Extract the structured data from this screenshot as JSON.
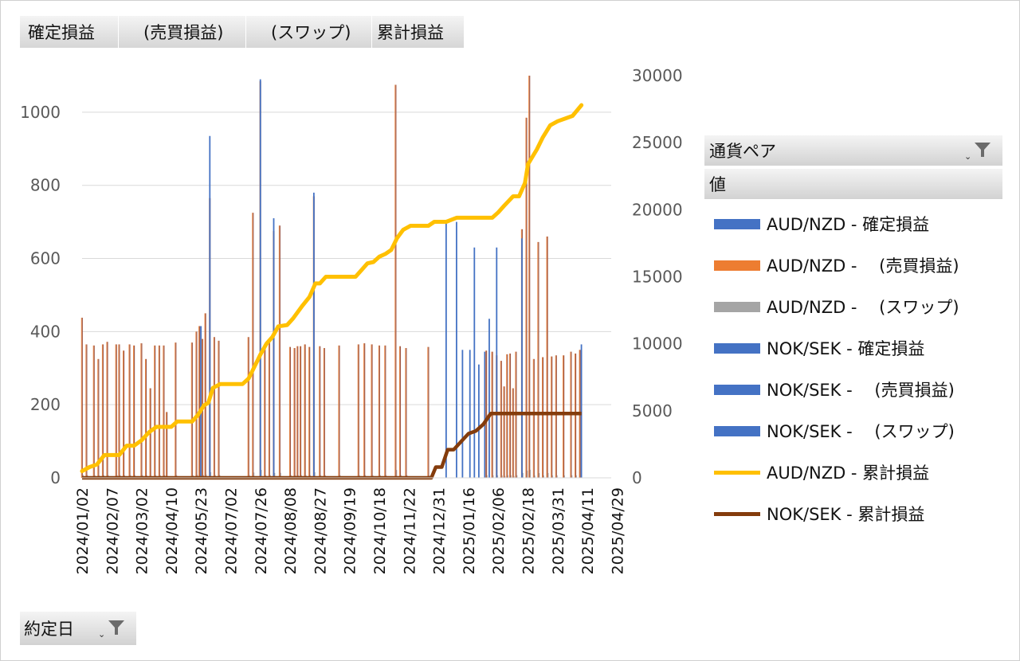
{
  "field_buttons": [
    "確定損益",
    "　(売買損益)",
    "　(スワップ)",
    "累計損益"
  ],
  "legend_filter": {
    "title": "通貨ペア",
    "values_label": "値"
  },
  "axis_filter": {
    "label": "約定日"
  },
  "colors": {
    "aud_settled": "#4472c4",
    "aud_trade": "#ed7d31",
    "aud_swap": "#a5a5a5",
    "nok": "#4472c4",
    "aud_cum": "#ffc000",
    "nok_cum": "#843c0c",
    "grid": "#d9d9d9"
  },
  "chart_data": {
    "type": "bar",
    "title": "",
    "y_left": {
      "min": 0,
      "max": 1100,
      "ticks": [
        0,
        200,
        400,
        600,
        800,
        1000
      ]
    },
    "y_right": {
      "min": 0,
      "max": 30000,
      "ticks": [
        0,
        5000,
        10000,
        15000,
        20000,
        25000,
        30000
      ]
    },
    "x_tick_labels": [
      "2024/01/02",
      "2024/02/07",
      "2024/03/02",
      "2024/04/10",
      "2024/05/23",
      "2024/07/02",
      "2024/07/26",
      "2024/08/08",
      "2024/08/27",
      "2024/09/19",
      "2024/10/18",
      "2024/11/22",
      "2024/12/31",
      "2025/01/16",
      "2025/02/06",
      "2025/02/18",
      "2025/03/31",
      "2025/04/11",
      "2025/04/29"
    ],
    "legend_position": "right",
    "gridlines": true,
    "series": [
      {
        "name": "AUD/NZD - 確定損益",
        "kind": "bar",
        "axis": "left",
        "color_key": "aud_settled"
      },
      {
        "name": "AUD/NZD - 　(売買損益)",
        "kind": "bar",
        "axis": "left",
        "color_key": "aud_trade"
      },
      {
        "name": "AUD/NZD - 　(スワップ)",
        "kind": "bar",
        "axis": "left",
        "color_key": "aud_swap"
      },
      {
        "name": "NOK/SEK - 確定損益",
        "kind": "bar",
        "axis": "left",
        "color_key": "nok"
      },
      {
        "name": "NOK/SEK - 　(売買損益)",
        "kind": "bar",
        "axis": "left",
        "color_key": "nok"
      },
      {
        "name": "NOK/SEK - 　(スワップ)",
        "kind": "bar",
        "axis": "left",
        "color_key": "nok"
      },
      {
        "name": "AUD/NZD - 累計損益",
        "kind": "line",
        "axis": "right",
        "color_key": "aud_cum"
      },
      {
        "name": "NOK/SEK - 累計損益",
        "kind": "line",
        "axis": "right",
        "color_key": "nok_cum"
      }
    ],
    "aud_bars": [
      {
        "x": 0.0,
        "v": 438
      },
      {
        "x": 0.3,
        "v": 365
      },
      {
        "x": 0.8,
        "v": 362
      },
      {
        "x": 1.1,
        "v": 325
      },
      {
        "x": 1.4,
        "v": 365
      },
      {
        "x": 1.7,
        "v": 372
      },
      {
        "x": 2.3,
        "v": 365
      },
      {
        "x": 2.5,
        "v": 365
      },
      {
        "x": 2.8,
        "v": 348
      },
      {
        "x": 3.2,
        "v": 365
      },
      {
        "x": 3.5,
        "v": 362
      },
      {
        "x": 4.0,
        "v": 368
      },
      {
        "x": 4.3,
        "v": 325
      },
      {
        "x": 4.6,
        "v": 245
      },
      {
        "x": 4.9,
        "v": 362
      },
      {
        "x": 5.2,
        "v": 362
      },
      {
        "x": 5.5,
        "v": 362
      },
      {
        "x": 5.7,
        "v": 180
      },
      {
        "x": 6.3,
        "v": 370
      },
      {
        "x": 7.4,
        "v": 370
      },
      {
        "x": 7.7,
        "v": 400
      },
      {
        "x": 7.9,
        "v": 415
      },
      {
        "x": 8.1,
        "v": 380
      },
      {
        "x": 8.3,
        "v": 450
      },
      {
        "x": 8.6,
        "v": 765
      },
      {
        "x": 8.9,
        "v": 385
      },
      {
        "x": 9.2,
        "v": 375
      },
      {
        "x": 11.2,
        "v": 385
      },
      {
        "x": 11.5,
        "v": 725
      },
      {
        "x": 12.0,
        "v": 1085
      },
      {
        "x": 12.3,
        "v": 365
      },
      {
        "x": 12.6,
        "v": 370
      },
      {
        "x": 12.9,
        "v": 675
      },
      {
        "x": 13.3,
        "v": 690
      },
      {
        "x": 14.0,
        "v": 358
      },
      {
        "x": 14.3,
        "v": 355
      },
      {
        "x": 14.5,
        "v": 360
      },
      {
        "x": 14.7,
        "v": 360
      },
      {
        "x": 15.0,
        "v": 365
      },
      {
        "x": 15.3,
        "v": 358
      },
      {
        "x": 15.6,
        "v": 770
      },
      {
        "x": 16.0,
        "v": 360
      },
      {
        "x": 16.3,
        "v": 355
      },
      {
        "x": 17.3,
        "v": 362
      },
      {
        "x": 18.6,
        "v": 365
      },
      {
        "x": 19.0,
        "v": 368
      },
      {
        "x": 19.5,
        "v": 365
      },
      {
        "x": 20.0,
        "v": 362
      },
      {
        "x": 20.4,
        "v": 362
      },
      {
        "x": 21.1,
        "v": 1075
      },
      {
        "x": 21.4,
        "v": 360
      },
      {
        "x": 21.8,
        "v": 355
      },
      {
        "x": 23.3,
        "v": 358
      },
      {
        "x": 27.2,
        "v": 348
      },
      {
        "x": 27.6,
        "v": 345
      },
      {
        "x": 27.9,
        "v": 335
      },
      {
        "x": 28.2,
        "v": 320
      },
      {
        "x": 28.4,
        "v": 250
      },
      {
        "x": 28.6,
        "v": 338
      },
      {
        "x": 28.8,
        "v": 340
      },
      {
        "x": 29.0,
        "v": 245
      },
      {
        "x": 29.2,
        "v": 345
      },
      {
        "x": 29.6,
        "v": 680
      },
      {
        "x": 29.9,
        "v": 985
      },
      {
        "x": 30.1,
        "v": 1100
      },
      {
        "x": 30.4,
        "v": 325
      },
      {
        "x": 30.7,
        "v": 645
      },
      {
        "x": 31.0,
        "v": 330
      },
      {
        "x": 31.3,
        "v": 660
      },
      {
        "x": 31.6,
        "v": 332
      },
      {
        "x": 31.9,
        "v": 335
      },
      {
        "x": 32.4,
        "v": 335
      },
      {
        "x": 32.9,
        "v": 345
      },
      {
        "x": 33.2,
        "v": 340
      },
      {
        "x": 33.5,
        "v": 350
      }
    ],
    "nok_bars": [
      {
        "x": 8.0,
        "v": 415
      },
      {
        "x": 8.6,
        "v": 935
      },
      {
        "x": 12.0,
        "v": 1090
      },
      {
        "x": 12.9,
        "v": 710
      },
      {
        "x": 15.6,
        "v": 780
      },
      {
        "x": 24.5,
        "v": 700
      },
      {
        "x": 25.2,
        "v": 700
      },
      {
        "x": 25.6,
        "v": 350
      },
      {
        "x": 26.1,
        "v": 350
      },
      {
        "x": 26.4,
        "v": 630
      },
      {
        "x": 26.7,
        "v": 310
      },
      {
        "x": 27.1,
        "v": 345
      },
      {
        "x": 27.4,
        "v": 435
      },
      {
        "x": 27.9,
        "v": 630
      },
      {
        "x": 29.6,
        "v": 655
      },
      {
        "x": 33.6,
        "v": 365
      }
    ],
    "aud_cum": [
      [
        0.0,
        500
      ],
      [
        0.5,
        800
      ],
      [
        1.0,
        1000
      ],
      [
        1.5,
        1700
      ],
      [
        2.5,
        1700
      ],
      [
        3.0,
        2400
      ],
      [
        3.5,
        2400
      ],
      [
        4.0,
        2800
      ],
      [
        4.5,
        3400
      ],
      [
        5.0,
        3800
      ],
      [
        5.5,
        3800
      ],
      [
        6.0,
        3800
      ],
      [
        6.4,
        4200
      ],
      [
        7.4,
        4200
      ],
      [
        7.8,
        4700
      ],
      [
        8.2,
        5400
      ],
      [
        8.5,
        5600
      ],
      [
        8.8,
        6700
      ],
      [
        9.3,
        7000
      ],
      [
        10.8,
        7000
      ],
      [
        11.2,
        7400
      ],
      [
        11.6,
        8300
      ],
      [
        12.0,
        9200
      ],
      [
        12.4,
        10000
      ],
      [
        12.8,
        10500
      ],
      [
        13.2,
        11300
      ],
      [
        13.8,
        11400
      ],
      [
        14.2,
        11900
      ],
      [
        14.8,
        12800
      ],
      [
        15.3,
        13500
      ],
      [
        15.7,
        14500
      ],
      [
        16.0,
        14500
      ],
      [
        16.4,
        15000
      ],
      [
        17.2,
        15000
      ],
      [
        17.5,
        15000
      ],
      [
        18.4,
        15000
      ],
      [
        18.8,
        15500
      ],
      [
        19.2,
        16000
      ],
      [
        19.6,
        16100
      ],
      [
        20.0,
        16500
      ],
      [
        20.4,
        16700
      ],
      [
        20.8,
        17000
      ],
      [
        21.2,
        17900
      ],
      [
        21.6,
        18500
      ],
      [
        22.1,
        18800
      ],
      [
        23.3,
        18800
      ],
      [
        23.7,
        19100
      ],
      [
        24.5,
        19100
      ],
      [
        25.2,
        19400
      ],
      [
        26.8,
        19400
      ],
      [
        27.6,
        19400
      ],
      [
        28.0,
        19800
      ],
      [
        28.4,
        20300
      ],
      [
        29.0,
        21000
      ],
      [
        29.4,
        21000
      ],
      [
        29.8,
        22000
      ],
      [
        30.0,
        23400
      ],
      [
        30.6,
        24500
      ],
      [
        31.0,
        25400
      ],
      [
        31.5,
        26300
      ],
      [
        32.0,
        26600
      ],
      [
        32.5,
        26800
      ],
      [
        33.0,
        27000
      ],
      [
        33.6,
        27800
      ]
    ],
    "nok_cum": [
      [
        0.0,
        0
      ],
      [
        23.5,
        0
      ],
      [
        23.8,
        800
      ],
      [
        24.2,
        800
      ],
      [
        24.6,
        2100
      ],
      [
        25.0,
        2100
      ],
      [
        25.5,
        2700
      ],
      [
        26.0,
        3300
      ],
      [
        26.5,
        3500
      ],
      [
        27.0,
        4000
      ],
      [
        27.5,
        4800
      ],
      [
        33.6,
        4800
      ]
    ]
  }
}
